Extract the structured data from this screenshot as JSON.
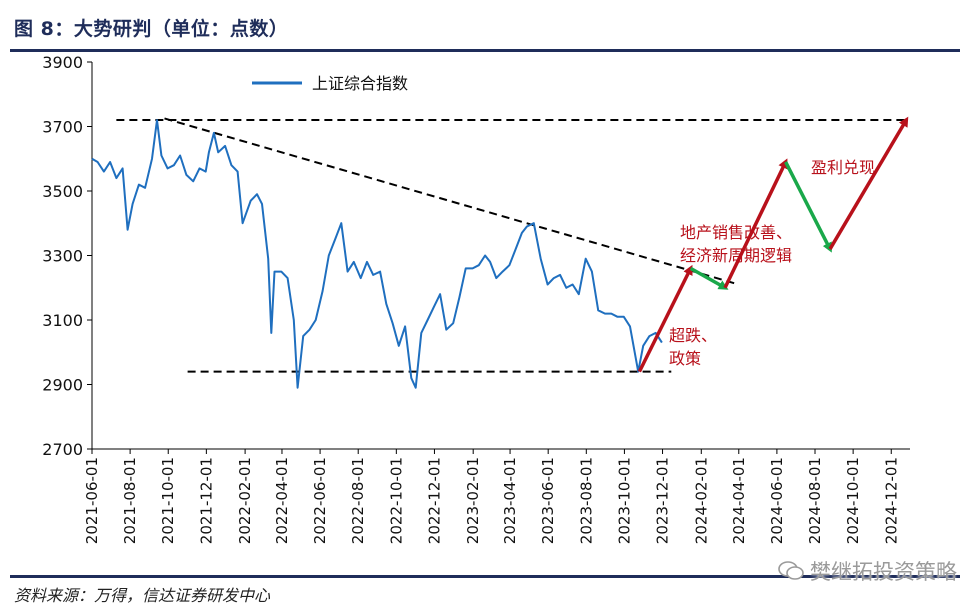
{
  "figure": {
    "title": "图 8：大势研判（单位：点数）",
    "source": "资料来源：万得，信达证券研发中心",
    "watermark": "樊继拓投资策略"
  },
  "colors": {
    "line": "#1f6fbf",
    "arrow_red": "#b8111b",
    "arrow_green": "#1aa84a",
    "annotation_red": "#b8111b",
    "frame_blue": "#1f2d5a"
  },
  "chart_data": {
    "type": "line",
    "title": "",
    "xlabel": "",
    "ylabel": "",
    "ylim": [
      2700,
      3900
    ],
    "yticks": [
      2700,
      2900,
      3100,
      3300,
      3500,
      3700,
      3900
    ],
    "xlim": [
      "2021-06-01",
      "2024-12-31"
    ],
    "xticks": [
      "2021-06-01",
      "2021-08-01",
      "2021-10-01",
      "2021-12-01",
      "2022-02-01",
      "2022-04-01",
      "2022-06-01",
      "2022-08-01",
      "2022-10-01",
      "2022-12-01",
      "2023-02-01",
      "2023-04-01",
      "2023-06-01",
      "2023-08-01",
      "2023-10-01",
      "2023-12-01",
      "2024-02-01",
      "2024-04-01",
      "2024-06-01",
      "2024-08-01",
      "2024-10-01",
      "2024-12-01"
    ],
    "legend": {
      "position": "top-left",
      "entries": [
        "上证综合指数"
      ]
    },
    "series": [
      {
        "name": "上证综合指数",
        "points": [
          [
            "2021-06-01",
            3600
          ],
          [
            "2021-06-10",
            3590
          ],
          [
            "2021-06-20",
            3560
          ],
          [
            "2021-06-30",
            3590
          ],
          [
            "2021-07-10",
            3540
          ],
          [
            "2021-07-20",
            3570
          ],
          [
            "2021-07-28",
            3380
          ],
          [
            "2021-08-05",
            3460
          ],
          [
            "2021-08-15",
            3520
          ],
          [
            "2021-08-25",
            3510
          ],
          [
            "2021-09-05",
            3600
          ],
          [
            "2021-09-13",
            3720
          ],
          [
            "2021-09-20",
            3610
          ],
          [
            "2021-09-30",
            3570
          ],
          [
            "2021-10-10",
            3580
          ],
          [
            "2021-10-20",
            3610
          ],
          [
            "2021-10-30",
            3550
          ],
          [
            "2021-11-10",
            3530
          ],
          [
            "2021-11-20",
            3570
          ],
          [
            "2021-11-30",
            3560
          ],
          [
            "2021-12-05",
            3620
          ],
          [
            "2021-12-13",
            3680
          ],
          [
            "2021-12-20",
            3620
          ],
          [
            "2021-12-31",
            3640
          ],
          [
            "2022-01-10",
            3580
          ],
          [
            "2022-01-20",
            3560
          ],
          [
            "2022-01-28",
            3400
          ],
          [
            "2022-02-10",
            3470
          ],
          [
            "2022-02-20",
            3490
          ],
          [
            "2022-02-28",
            3460
          ],
          [
            "2022-03-10",
            3290
          ],
          [
            "2022-03-15",
            3060
          ],
          [
            "2022-03-20",
            3250
          ],
          [
            "2022-03-31",
            3250
          ],
          [
            "2022-04-10",
            3230
          ],
          [
            "2022-04-20",
            3100
          ],
          [
            "2022-04-26",
            2890
          ],
          [
            "2022-05-05",
            3050
          ],
          [
            "2022-05-15",
            3070
          ],
          [
            "2022-05-25",
            3100
          ],
          [
            "2022-06-05",
            3190
          ],
          [
            "2022-06-15",
            3300
          ],
          [
            "2022-06-25",
            3350
          ],
          [
            "2022-07-05",
            3400
          ],
          [
            "2022-07-15",
            3250
          ],
          [
            "2022-07-25",
            3280
          ],
          [
            "2022-08-05",
            3230
          ],
          [
            "2022-08-15",
            3280
          ],
          [
            "2022-08-25",
            3240
          ],
          [
            "2022-09-05",
            3250
          ],
          [
            "2022-09-15",
            3150
          ],
          [
            "2022-09-25",
            3090
          ],
          [
            "2022-10-05",
            3020
          ],
          [
            "2022-10-15",
            3080
          ],
          [
            "2022-10-25",
            2920
          ],
          [
            "2022-11-01",
            2890
          ],
          [
            "2022-11-10",
            3060
          ],
          [
            "2022-11-20",
            3100
          ],
          [
            "2022-11-30",
            3140
          ],
          [
            "2022-12-10",
            3180
          ],
          [
            "2022-12-20",
            3070
          ],
          [
            "2022-12-31",
            3090
          ],
          [
            "2023-01-10",
            3170
          ],
          [
            "2023-01-20",
            3260
          ],
          [
            "2023-01-31",
            3260
          ],
          [
            "2023-02-10",
            3270
          ],
          [
            "2023-02-20",
            3300
          ],
          [
            "2023-02-28",
            3280
          ],
          [
            "2023-03-10",
            3230
          ],
          [
            "2023-03-20",
            3250
          ],
          [
            "2023-03-31",
            3270
          ],
          [
            "2023-04-10",
            3320
          ],
          [
            "2023-04-20",
            3370
          ],
          [
            "2023-04-28",
            3390
          ],
          [
            "2023-05-09",
            3400
          ],
          [
            "2023-05-20",
            3290
          ],
          [
            "2023-05-31",
            3210
          ],
          [
            "2023-06-10",
            3230
          ],
          [
            "2023-06-20",
            3240
          ],
          [
            "2023-06-30",
            3200
          ],
          [
            "2023-07-10",
            3210
          ],
          [
            "2023-07-20",
            3180
          ],
          [
            "2023-07-31",
            3290
          ],
          [
            "2023-08-10",
            3250
          ],
          [
            "2023-08-20",
            3130
          ],
          [
            "2023-08-31",
            3120
          ],
          [
            "2023-09-10",
            3120
          ],
          [
            "2023-09-20",
            3110
          ],
          [
            "2023-09-30",
            3110
          ],
          [
            "2023-10-10",
            3080
          ],
          [
            "2023-10-23",
            2940
          ],
          [
            "2023-10-31",
            3020
          ],
          [
            "2023-11-10",
            3050
          ],
          [
            "2023-11-20",
            3060
          ],
          [
            "2023-11-30",
            3030
          ]
        ]
      }
    ],
    "reference_lines": [
      {
        "style": "dashed",
        "from": [
          "2021-07-10",
          3720
        ],
        "to": [
          "2024-12-25",
          3720
        ]
      },
      {
        "style": "dashed",
        "from": [
          "2021-09-25",
          3725
        ],
        "to": [
          "2024-04-01",
          3210
        ]
      },
      {
        "style": "dashed",
        "from": [
          "2021-11-01",
          2940
        ],
        "to": [
          "2023-12-15",
          2940
        ]
      }
    ],
    "scenario_arrows": [
      {
        "color": "red",
        "from": [
          "2023-10-25",
          2940
        ],
        "to": [
          "2024-01-15",
          3260
        ]
      },
      {
        "color": "green",
        "from": [
          "2024-01-15",
          3260
        ],
        "to": [
          "2024-03-10",
          3200
        ]
      },
      {
        "color": "red",
        "from": [
          "2024-03-10",
          3200
        ],
        "to": [
          "2024-06-15",
          3590
        ]
      },
      {
        "color": "green",
        "from": [
          "2024-06-15",
          3590
        ],
        "to": [
          "2024-08-25",
          3320
        ]
      },
      {
        "color": "red",
        "from": [
          "2024-08-25",
          3320
        ],
        "to": [
          "2024-12-25",
          3720
        ]
      }
    ],
    "annotations": [
      {
        "lines": [
          "超跌、",
          "政策"
        ]
      },
      {
        "lines": [
          "地产销售改善、",
          "经济新周期逻辑"
        ]
      },
      {
        "lines": [
          "盈利兑现"
        ]
      }
    ]
  }
}
